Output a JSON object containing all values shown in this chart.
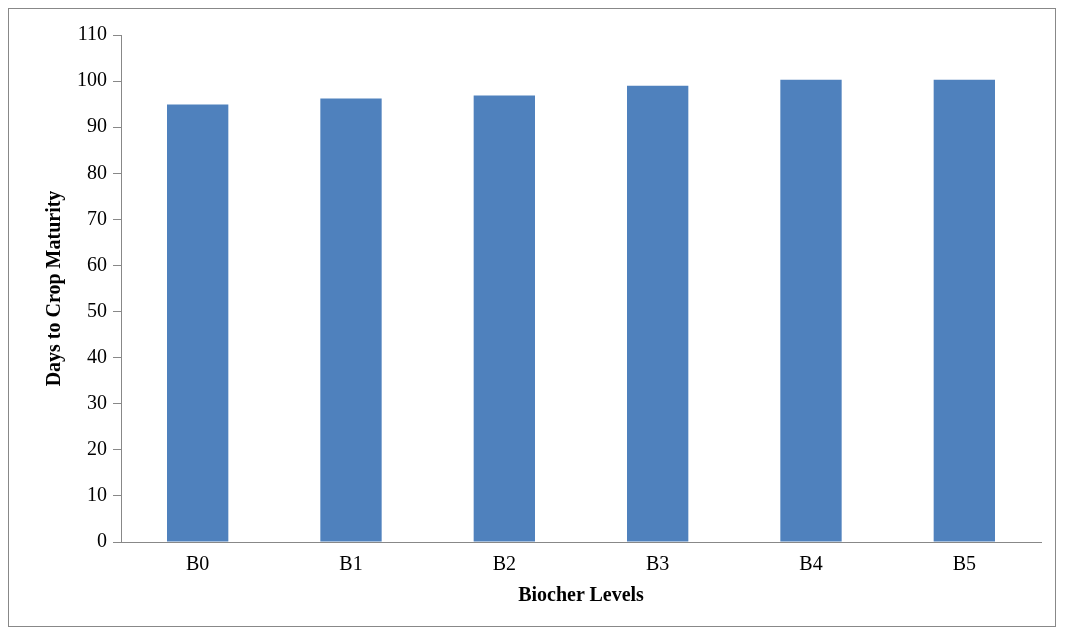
{
  "chart_data": {
    "type": "bar",
    "xlabel": "Biocher Levels",
    "ylabel": "Days to Crop Maturity",
    "categories": [
      "B0",
      "B1",
      "B2",
      "B3",
      "B4",
      "B5"
    ],
    "values": [
      94.9,
      96.2,
      96.9,
      99.0,
      100.3,
      100.3
    ],
    "color": "#4f81bd",
    "ylim": [
      0,
      110
    ],
    "yticks": [
      0,
      10,
      20,
      30,
      40,
      50,
      60,
      70,
      80,
      90,
      100,
      110
    ],
    "grid": false,
    "legend": false
  }
}
